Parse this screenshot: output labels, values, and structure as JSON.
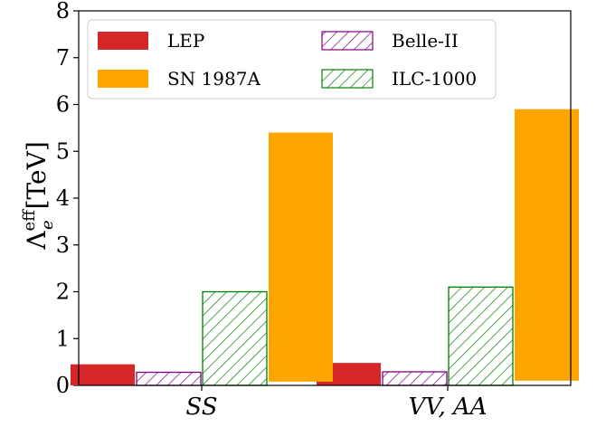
{
  "chart_data": {
    "type": "bar",
    "ylabel": {
      "symbol": "Λ",
      "superscript": "eff",
      "subscript": "e",
      "unit": "[TeV]"
    },
    "ylim": [
      0,
      8
    ],
    "yticks": [
      "0",
      "1",
      "2",
      "3",
      "4",
      "5",
      "6",
      "7",
      "8"
    ],
    "categories": [
      "SS",
      "VV, AA"
    ],
    "series": [
      {
        "name": "LEP",
        "color": "#d62728",
        "hatch": false,
        "values": [
          0.45,
          0.48
        ]
      },
      {
        "name": "Belle-II",
        "color": "#800080",
        "hatch": true,
        "values": [
          0.28,
          0.29
        ]
      },
      {
        "name": "ILC-1000",
        "color": "#008000",
        "hatch": true,
        "values": [
          2.0,
          2.1
        ]
      },
      {
        "name": "SN 1987A",
        "color": "#ffa500",
        "hatch": false,
        "values": [
          5.4,
          5.9
        ],
        "base": [
          0.08,
          0.1
        ]
      }
    ],
    "legend": {
      "placement": "top-left",
      "entries": [
        "LEP",
        "Belle-II",
        "SN 1987A",
        "ILC-1000"
      ]
    },
    "grid": false
  }
}
